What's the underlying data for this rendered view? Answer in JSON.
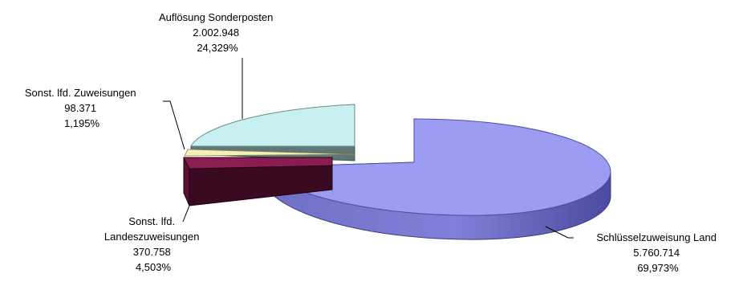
{
  "chart_data": {
    "type": "pie",
    "style": "3d-exploded",
    "title": "",
    "slices": [
      {
        "label": "Schlüsselzuweisung Land",
        "value": "5.760.714",
        "percent": "69,973%",
        "color": "#9c9cf2"
      },
      {
        "label": "Auflösung Sonderposten",
        "value": "2.002.948",
        "percent": "24,329%",
        "color": "#c8f0f0"
      },
      {
        "label": "Sonst. lfd. Zuweisungen",
        "value": "98.371",
        "percent": "1,195%",
        "color": "#f4f0b8"
      },
      {
        "label": "Sonst. lfd.\nLandeszuweisungen",
        "label_lines": [
          "Sonst. lfd.",
          "Landeszuweisungen"
        ],
        "value": "370.758",
        "percent": "4,503%",
        "color": "#7a1a48"
      }
    ],
    "legend": "none"
  }
}
